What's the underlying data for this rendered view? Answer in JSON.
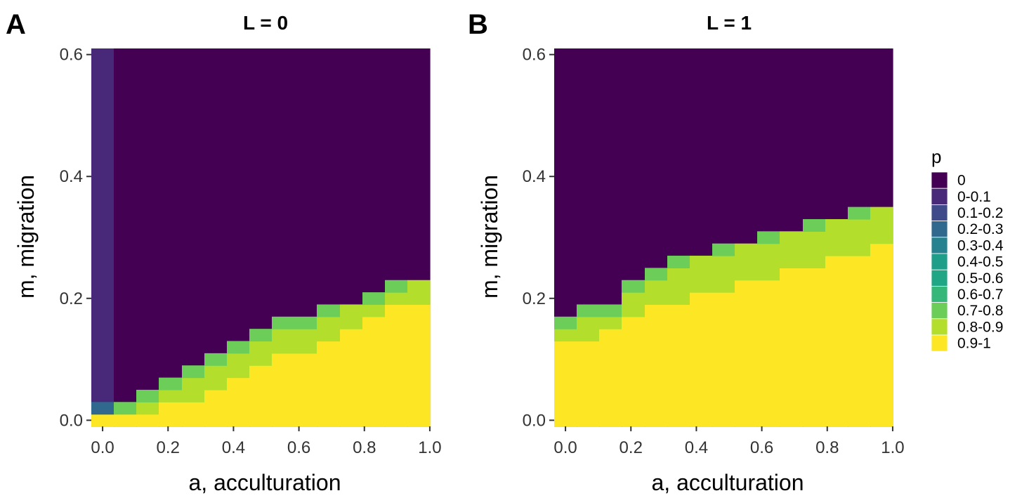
{
  "chart_data": [
    {
      "type": "heatmap",
      "panel_label": "A",
      "title": "L = 0",
      "xlabel": "a, acculturation",
      "ylabel": "m, migration",
      "x_ticks": [
        "0.0",
        "0.2",
        "0.4",
        "0.6",
        "0.8",
        "1.0"
      ],
      "y_ticks": [
        "0.0",
        "0.2",
        "0.4",
        "0.6"
      ],
      "xlim": [
        -0.0345,
        1.0345
      ],
      "ylim": [
        -0.01,
        0.61
      ],
      "x_cell_width": 0.069,
      "y_cell_height": 0.02,
      "columns": [
        {
          "a": 0.0,
          "yellow_top": 0.0,
          "green_rows": [],
          "low_rows": [
            {
              "m": 0.02,
              "bin": 3
            }
          ],
          "purple_bin": 1
        },
        {
          "a": 0.069,
          "yellow_top": 0.0,
          "green_rows": [
            {
              "m": 0.02,
              "bin": 8
            }
          ]
        },
        {
          "a": 0.138,
          "yellow_top": 0.0,
          "green_rows": [
            {
              "m": 0.02,
              "bin": 9
            },
            {
              "m": 0.04,
              "bin": 8
            }
          ]
        },
        {
          "a": 0.207,
          "yellow_top": 0.02,
          "green_rows": [
            {
              "m": 0.04,
              "bin": 9
            },
            {
              "m": 0.06,
              "bin": 8
            }
          ]
        },
        {
          "a": 0.276,
          "yellow_top": 0.02,
          "green_rows": [
            {
              "m": 0.04,
              "bin": 9
            },
            {
              "m": 0.06,
              "bin": 9
            },
            {
              "m": 0.08,
              "bin": 8
            }
          ]
        },
        {
          "a": 0.345,
          "yellow_top": 0.04,
          "green_rows": [
            {
              "m": 0.06,
              "bin": 9
            },
            {
              "m": 0.08,
              "bin": 9
            },
            {
              "m": 0.1,
              "bin": 8
            }
          ]
        },
        {
          "a": 0.414,
          "yellow_top": 0.06,
          "green_rows": [
            {
              "m": 0.08,
              "bin": 9
            },
            {
              "m": 0.1,
              "bin": 9
            },
            {
              "m": 0.12,
              "bin": 8
            }
          ]
        },
        {
          "a": 0.483,
          "yellow_top": 0.08,
          "green_rows": [
            {
              "m": 0.1,
              "bin": 9
            },
            {
              "m": 0.12,
              "bin": 9
            },
            {
              "m": 0.14,
              "bin": 8
            }
          ]
        },
        {
          "a": 0.552,
          "yellow_top": 0.1,
          "green_rows": [
            {
              "m": 0.12,
              "bin": 9
            },
            {
              "m": 0.14,
              "bin": 9
            },
            {
              "m": 0.16,
              "bin": 8
            }
          ]
        },
        {
          "a": 0.621,
          "yellow_top": 0.1,
          "green_rows": [
            {
              "m": 0.12,
              "bin": 9
            },
            {
              "m": 0.14,
              "bin": 9
            },
            {
              "m": 0.16,
              "bin": 8
            }
          ]
        },
        {
          "a": 0.69,
          "yellow_top": 0.12,
          "green_rows": [
            {
              "m": 0.14,
              "bin": 9
            },
            {
              "m": 0.16,
              "bin": 9
            },
            {
              "m": 0.18,
              "bin": 8
            }
          ]
        },
        {
          "a": 0.759,
          "yellow_top": 0.14,
          "green_rows": [
            {
              "m": 0.16,
              "bin": 9
            },
            {
              "m": 0.18,
              "bin": 9
            }
          ]
        },
        {
          "a": 0.828,
          "yellow_top": 0.16,
          "green_rows": [
            {
              "m": 0.18,
              "bin": 9
            },
            {
              "m": 0.2,
              "bin": 8
            }
          ]
        },
        {
          "a": 0.897,
          "yellow_top": 0.18,
          "green_rows": [
            {
              "m": 0.2,
              "bin": 9
            },
            {
              "m": 0.22,
              "bin": 8
            }
          ]
        },
        {
          "a": 0.966,
          "yellow_top": 0.18,
          "green_rows": [
            {
              "m": 0.2,
              "bin": 9
            },
            {
              "m": 0.22,
              "bin": 9
            }
          ]
        }
      ]
    },
    {
      "type": "heatmap",
      "panel_label": "B",
      "title": "L = 1",
      "xlabel": "a, acculturation",
      "ylabel": "m, migration",
      "x_ticks": [
        "0.0",
        "0.2",
        "0.4",
        "0.6",
        "0.8",
        "1.0"
      ],
      "y_ticks": [
        "0.0",
        "0.2",
        "0.4",
        "0.6"
      ],
      "xlim": [
        -0.0345,
        1.0345
      ],
      "ylim": [
        -0.01,
        0.61
      ],
      "x_cell_width": 0.069,
      "y_cell_height": 0.02,
      "columns": [
        {
          "a": 0.0,
          "yellow_top": 0.12,
          "green_rows": [
            {
              "m": 0.14,
              "bin": 9
            },
            {
              "m": 0.16,
              "bin": 8
            }
          ]
        },
        {
          "a": 0.069,
          "yellow_top": 0.12,
          "green_rows": [
            {
              "m": 0.14,
              "bin": 9
            },
            {
              "m": 0.16,
              "bin": 9
            },
            {
              "m": 0.18,
              "bin": 8
            }
          ]
        },
        {
          "a": 0.138,
          "yellow_top": 0.14,
          "green_rows": [
            {
              "m": 0.16,
              "bin": 9
            },
            {
              "m": 0.18,
              "bin": 8
            }
          ]
        },
        {
          "a": 0.207,
          "yellow_top": 0.16,
          "green_rows": [
            {
              "m": 0.18,
              "bin": 9
            },
            {
              "m": 0.2,
              "bin": 9
            },
            {
              "m": 0.22,
              "bin": 8
            }
          ]
        },
        {
          "a": 0.276,
          "yellow_top": 0.18,
          "green_rows": [
            {
              "m": 0.2,
              "bin": 9
            },
            {
              "m": 0.22,
              "bin": 9
            },
            {
              "m": 0.24,
              "bin": 8
            }
          ]
        },
        {
          "a": 0.345,
          "yellow_top": 0.18,
          "green_rows": [
            {
              "m": 0.2,
              "bin": 9
            },
            {
              "m": 0.22,
              "bin": 9
            },
            {
              "m": 0.24,
              "bin": 9
            },
            {
              "m": 0.26,
              "bin": 8
            }
          ]
        },
        {
          "a": 0.414,
          "yellow_top": 0.2,
          "green_rows": [
            {
              "m": 0.22,
              "bin": 9
            },
            {
              "m": 0.24,
              "bin": 9
            },
            {
              "m": 0.26,
              "bin": 9
            }
          ]
        },
        {
          "a": 0.483,
          "yellow_top": 0.2,
          "green_rows": [
            {
              "m": 0.22,
              "bin": 9
            },
            {
              "m": 0.24,
              "bin": 9
            },
            {
              "m": 0.26,
              "bin": 9
            },
            {
              "m": 0.28,
              "bin": 8
            }
          ]
        },
        {
          "a": 0.552,
          "yellow_top": 0.22,
          "green_rows": [
            {
              "m": 0.24,
              "bin": 9
            },
            {
              "m": 0.26,
              "bin": 9
            },
            {
              "m": 0.28,
              "bin": 9
            }
          ]
        },
        {
          "a": 0.621,
          "yellow_top": 0.22,
          "green_rows": [
            {
              "m": 0.24,
              "bin": 9
            },
            {
              "m": 0.26,
              "bin": 9
            },
            {
              "m": 0.28,
              "bin": 9
            },
            {
              "m": 0.3,
              "bin": 8
            }
          ]
        },
        {
          "a": 0.69,
          "yellow_top": 0.24,
          "green_rows": [
            {
              "m": 0.26,
              "bin": 9
            },
            {
              "m": 0.28,
              "bin": 9
            },
            {
              "m": 0.3,
              "bin": 9
            }
          ]
        },
        {
          "a": 0.759,
          "yellow_top": 0.24,
          "green_rows": [
            {
              "m": 0.26,
              "bin": 9
            },
            {
              "m": 0.28,
              "bin": 9
            },
            {
              "m": 0.3,
              "bin": 9
            },
            {
              "m": 0.32,
              "bin": 8
            }
          ]
        },
        {
          "a": 0.828,
          "yellow_top": 0.26,
          "green_rows": [
            {
              "m": 0.28,
              "bin": 9
            },
            {
              "m": 0.3,
              "bin": 9
            },
            {
              "m": 0.32,
              "bin": 9
            }
          ]
        },
        {
          "a": 0.897,
          "yellow_top": 0.26,
          "green_rows": [
            {
              "m": 0.28,
              "bin": 9
            },
            {
              "m": 0.3,
              "bin": 9
            },
            {
              "m": 0.32,
              "bin": 9
            },
            {
              "m": 0.34,
              "bin": 8
            }
          ]
        },
        {
          "a": 0.966,
          "yellow_top": 0.28,
          "green_rows": [
            {
              "m": 0.3,
              "bin": 9
            },
            {
              "m": 0.32,
              "bin": 9
            },
            {
              "m": 0.34,
              "bin": 9
            }
          ]
        }
      ]
    }
  ],
  "legend": {
    "title": "p",
    "placement": "right",
    "items": [
      {
        "label": "0",
        "color": "#440154"
      },
      {
        "label": "0-0.1",
        "color": "#482878"
      },
      {
        "label": "0.1-0.2",
        "color": "#3E4A89"
      },
      {
        "label": "0.2-0.3",
        "color": "#31688E"
      },
      {
        "label": "0.3-0.4",
        "color": "#26828E"
      },
      {
        "label": "0.4-0.5",
        "color": "#1F9E89"
      },
      {
        "label": "0.5-0.6",
        "color": "#21A685"
      },
      {
        "label": "0.6-0.7",
        "color": "#35B779"
      },
      {
        "label": "0.7-0.8",
        "color": "#6CCE59"
      },
      {
        "label": "0.8-0.9",
        "color": "#B4DE2C"
      },
      {
        "label": "0.9-1",
        "color": "#FDE725"
      }
    ]
  }
}
